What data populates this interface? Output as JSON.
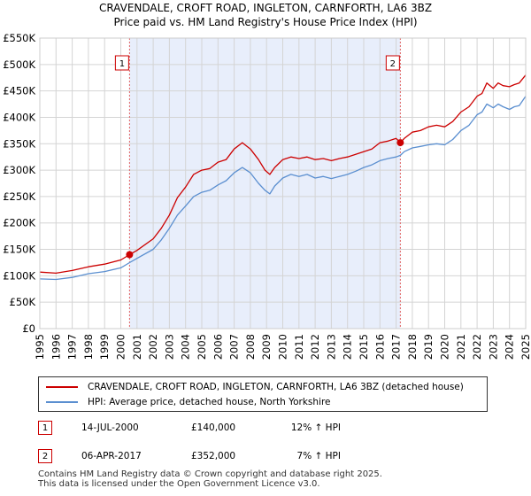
{
  "chart_data": {
    "type": "line",
    "title": "CRAVENDALE, CROFT ROAD, INGLETON, CARNFORTH, LA6 3BZ",
    "subtitle": "Price paid vs. HM Land Registry's House Price Index (HPI)",
    "xlim": [
      1995,
      2025
    ],
    "ylim": [
      0,
      550000
    ],
    "y_ticks": [
      0,
      50000,
      100000,
      150000,
      200000,
      250000,
      300000,
      350000,
      400000,
      450000,
      500000,
      550000
    ],
    "y_tick_labels": [
      "£0",
      "£50K",
      "£100K",
      "£150K",
      "£200K",
      "£250K",
      "£300K",
      "£350K",
      "£400K",
      "£450K",
      "£500K",
      "£550K"
    ],
    "x_ticks": [
      1995,
      1996,
      1997,
      1998,
      1999,
      2000,
      2001,
      2002,
      2003,
      2004,
      2005,
      2006,
      2007,
      2008,
      2009,
      2010,
      2011,
      2012,
      2013,
      2014,
      2015,
      2016,
      2017,
      2018,
      2019,
      2020,
      2021,
      2022,
      2023,
      2024,
      2025
    ],
    "x_tick_labels": [
      "1995",
      "1996",
      "1997",
      "1998",
      "1999",
      "2000",
      "2001",
      "2002",
      "2003",
      "2004",
      "2005",
      "2006",
      "2007",
      "2008",
      "2009",
      "2010",
      "2011",
      "2012",
      "2013",
      "2014",
      "2015",
      "2016",
      "2017",
      "2018",
      "2019",
      "2020",
      "2021",
      "2022",
      "2023",
      "2024",
      "2025"
    ],
    "grid": true,
    "shaded_region": [
      2000.54,
      2017.26
    ],
    "series": [
      {
        "name": "CRAVENDALE, CROFT ROAD, INGLETON, CARNFORTH, LA6 3BZ (detached house)",
        "color": "#cc0000",
        "x": [
          1995.0,
          1996.0,
          1997.0,
          1998.0,
          1999.0,
          2000.0,
          2000.54,
          2001.0,
          2002.0,
          2002.5,
          2003.0,
          2003.5,
          2004.0,
          2004.5,
          2005.0,
          2005.5,
          2006.0,
          2006.5,
          2007.0,
          2007.5,
          2008.0,
          2008.5,
          2008.9,
          2009.2,
          2009.5,
          2010.0,
          2010.5,
          2011.0,
          2011.5,
          2012.0,
          2012.5,
          2013.0,
          2013.5,
          2014.0,
          2014.5,
          2015.0,
          2015.5,
          2016.0,
          2016.5,
          2017.0,
          2017.26,
          2017.5,
          2018.0,
          2018.5,
          2019.0,
          2019.5,
          2020.0,
          2020.5,
          2021.0,
          2021.5,
          2022.0,
          2022.3,
          2022.6,
          2023.0,
          2023.3,
          2023.6,
          2024.0,
          2024.3,
          2024.6,
          2025.0
        ],
        "values": [
          107000,
          105000,
          110000,
          117000,
          122000,
          130000,
          140000,
          148000,
          170000,
          190000,
          215000,
          248000,
          268000,
          292000,
          300000,
          303000,
          315000,
          320000,
          340000,
          352000,
          340000,
          320000,
          300000,
          292000,
          305000,
          320000,
          325000,
          322000,
          325000,
          320000,
          322000,
          318000,
          322000,
          325000,
          330000,
          335000,
          340000,
          352000,
          355000,
          360000,
          352000,
          360000,
          372000,
          375000,
          382000,
          385000,
          382000,
          392000,
          410000,
          420000,
          440000,
          445000,
          465000,
          455000,
          465000,
          460000,
          458000,
          462000,
          465000,
          480000
        ]
      },
      {
        "name": "HPI: Average price, detached house, North Yorkshire",
        "color": "#5b8fd0",
        "x": [
          1995.0,
          1996.0,
          1997.0,
          1998.0,
          1999.0,
          2000.0,
          2000.54,
          2001.0,
          2002.0,
          2002.5,
          2003.0,
          2003.5,
          2004.0,
          2004.5,
          2005.0,
          2005.5,
          2006.0,
          2006.5,
          2007.0,
          2007.5,
          2008.0,
          2008.5,
          2008.9,
          2009.2,
          2009.5,
          2010.0,
          2010.5,
          2011.0,
          2011.5,
          2012.0,
          2012.5,
          2013.0,
          2013.5,
          2014.0,
          2014.5,
          2015.0,
          2015.5,
          2016.0,
          2016.5,
          2017.0,
          2017.26,
          2017.5,
          2018.0,
          2018.5,
          2019.0,
          2019.5,
          2020.0,
          2020.5,
          2021.0,
          2021.5,
          2022.0,
          2022.3,
          2022.6,
          2023.0,
          2023.3,
          2023.6,
          2024.0,
          2024.3,
          2024.6,
          2025.0
        ],
        "values": [
          94000,
          93000,
          97000,
          104000,
          108000,
          115000,
          125000,
          133000,
          150000,
          168000,
          190000,
          215000,
          232000,
          250000,
          258000,
          262000,
          272000,
          280000,
          295000,
          305000,
          295000,
          275000,
          262000,
          255000,
          270000,
          285000,
          292000,
          288000,
          292000,
          285000,
          288000,
          284000,
          288000,
          292000,
          298000,
          305000,
          310000,
          318000,
          322000,
          325000,
          328000,
          335000,
          342000,
          345000,
          348000,
          350000,
          348000,
          358000,
          375000,
          385000,
          405000,
          410000,
          425000,
          418000,
          425000,
          420000,
          415000,
          420000,
          422000,
          440000
        ]
      }
    ],
    "markers": [
      {
        "label": "1",
        "x": 2000.54,
        "y": 140000
      },
      {
        "label": "2",
        "x": 2017.26,
        "y": 352000
      }
    ]
  },
  "legend": {
    "items": [
      {
        "label": "CRAVENDALE, CROFT ROAD, INGLETON, CARNFORTH, LA6 3BZ (detached house)",
        "color": "#cc0000"
      },
      {
        "label": "HPI: Average price, detached house, North Yorkshire",
        "color": "#5b8fd0"
      }
    ]
  },
  "sales": [
    {
      "num": "1",
      "date": "14-JUL-2000",
      "price": "£140,000",
      "hpi": "12% ↑ HPI"
    },
    {
      "num": "2",
      "date": "06-APR-2017",
      "price": "£352,000",
      "hpi": "7% ↑ HPI"
    }
  ],
  "footer": {
    "line1": "Contains HM Land Registry data © Crown copyright and database right 2025.",
    "line2": "This data is licensed under the Open Government Licence v3.0."
  }
}
